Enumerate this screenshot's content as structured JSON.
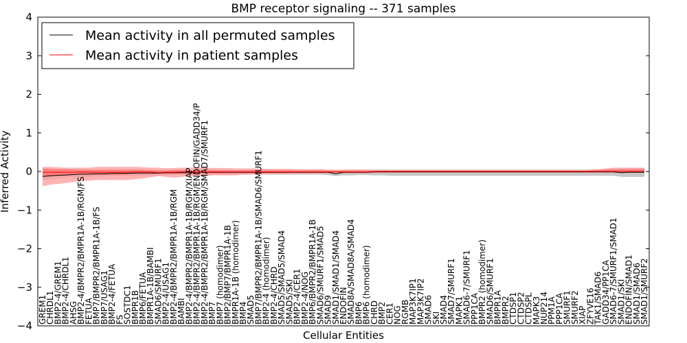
{
  "chart_data": {
    "type": "line",
    "title": "BMP receptor signaling -- 371 samples",
    "xlabel": "Cellular Entities",
    "ylabel": "Inferred Activity",
    "ylim": [
      -4,
      4
    ],
    "yticks": [
      -4,
      -3,
      -2,
      -1,
      0,
      1,
      2,
      3,
      4
    ],
    "ytick_labels": [
      "−4",
      "−3",
      "−2",
      "−1",
      "0",
      "1",
      "2",
      "3",
      "4"
    ],
    "legend_position": "top-left",
    "categories": [
      "GREM1",
      "CHRDL1",
      "BMP2-4/GREM1",
      "BMP2-4/CHRDL1",
      "AHSG",
      "BMP2-4/BMPR2/BMPR1A-1B/RGM/FS",
      "FETUA",
      "BMP7/BMPR2/BMPR1A-1B/FS",
      "BMP7/USAG1",
      "BMP2-4/FETUA",
      "FS",
      "SOSTDC1",
      "BMPR1B",
      "BMP6/FETUA",
      "BMPR1A-1B/BAMBI",
      "SMAD6/SMURF1",
      "BMP2-4/USAG1",
      "BMP2-4/BMPR2/BMPR1A-1B/RGM",
      "BAMBI",
      "BMP2-4/BMPR2/BMPR1A-1B/RGM/XIAP",
      "BMP2-4/BMPR2/BMPR1A-1B/RGM/ENDOFIN/GADD34/P",
      "BMP2-4/BMPR2/BMPR1A-1B/RGM/SMAD7/SMURF1",
      "BMP7",
      "BMP7 (homodimer)",
      "BMP2/BMP7/BMPR1A-1B",
      "BMPR1A-1B (homodimer)",
      "BMP4",
      "SMAD5",
      "BMP7/BMPR2/BMPR1A-1B/SMAD6/SMURF1",
      "BMP2-4 (homodimer)",
      "BMP2-4/CHRD",
      "SMAD5/SMAD5/SMAD4",
      "SMAD5/SKI",
      "BMP2-4/CER1",
      "BMP2-4/NOG",
      "BMP6/BMPR2/BMPR1A-1B",
      "SMAD6/SMURF1/SMAD5",
      "SMAD9",
      "SMAD1/SMAD1/SMAD4",
      "ENDOFIN",
      "SMAD8A/SMAD8A/SMAD4",
      "BMP6",
      "BMP6 (homodimer)",
      "CHRD",
      "BMP2",
      "CER1",
      "NOG",
      "RGMB",
      "MAP3K7IP1",
      "MAP3K7IP2",
      "SMAD6",
      "SKI",
      "SMAD4",
      "SMAD7/SMURF1",
      "MAPK1",
      "SMAD6-7/SMURF1",
      "PPP1CA",
      "BMPR2 (homodimer)",
      "SMAD6/SMURF1",
      "BMPR1A",
      "BMPR2",
      "CTDSP1",
      "CTDSP2",
      "CTDSPL",
      "MAPK3",
      "NUP214",
      "PPM1A",
      "PPP1CA",
      "SMURF1",
      "SMURF2",
      "XIAP",
      "ZFYVE16",
      "TAK1/SMAD6",
      "GADD34/PP1CA",
      "SMAD6-7/SMURF1/SMAD1",
      "SMAD1/SKI",
      "ENDOFIN/SMAD1",
      "SMAD1/SMAD6",
      "SMAD1/SMURF2"
    ],
    "series": [
      {
        "name": "Mean activity in all permuted samples",
        "color": "#000000",
        "values": [
          -0.13,
          -0.11,
          -0.1,
          -0.09,
          -0.08,
          -0.07,
          -0.07,
          -0.06,
          -0.06,
          -0.05,
          -0.05,
          -0.05,
          -0.04,
          -0.04,
          -0.04,
          -0.04,
          -0.03,
          -0.03,
          -0.03,
          -0.03,
          -0.02,
          -0.02,
          -0.02,
          -0.02,
          -0.02,
          -0.02,
          -0.02,
          -0.02,
          -0.02,
          -0.02,
          -0.02,
          -0.02,
          -0.02,
          -0.02,
          -0.02,
          -0.02,
          -0.02,
          -0.02,
          -0.06,
          -0.02,
          -0.02,
          -0.02,
          -0.02,
          -0.01,
          -0.01,
          -0.01,
          -0.01,
          -0.01,
          -0.01,
          -0.01,
          -0.01,
          -0.01,
          -0.01,
          -0.01,
          -0.01,
          -0.01,
          -0.01,
          -0.01,
          -0.01,
          -0.01,
          -0.01,
          -0.01,
          -0.01,
          -0.01,
          -0.01,
          -0.01,
          -0.01,
          -0.01,
          -0.01,
          -0.01,
          -0.01,
          -0.01,
          -0.01,
          -0.01,
          -0.01,
          -0.03,
          -0.02,
          -0.02,
          -0.02
        ]
      },
      {
        "name": "Mean activity in patient samples",
        "color": "#ff0000",
        "values": [
          -0.02,
          -0.02,
          -0.02,
          -0.02,
          -0.02,
          -0.01,
          -0.02,
          -0.02,
          -0.02,
          -0.02,
          -0.02,
          -0.02,
          -0.01,
          -0.01,
          -0.01,
          -0.03,
          -0.02,
          -0.02,
          -0.01,
          -0.01,
          -0.01,
          -0.01,
          -0.01,
          -0.01,
          -0.01,
          -0.01,
          -0.01,
          -0.01,
          -0.01,
          -0.01,
          -0.01,
          -0.01,
          -0.01,
          -0.01,
          -0.01,
          -0.01,
          -0.01,
          -0.01,
          -0.01,
          -0.01,
          -0.01,
          -0.01,
          -0.01,
          0.0,
          0.0,
          0.0,
          0.0,
          0.0,
          0.0,
          0.0,
          0.0,
          0.0,
          0.0,
          0.0,
          0.0,
          0.0,
          0.0,
          0.0,
          0.0,
          0.0,
          0.0,
          0.0,
          0.0,
          0.0,
          0.0,
          0.0,
          0.0,
          0.0,
          0.0,
          0.0,
          0.0,
          0.0,
          0.0,
          0.0,
          0.0,
          0.0,
          0.0,
          0.0,
          0.0
        ]
      }
    ],
    "bands": [
      {
        "name": "permuted spread",
        "color": "#b4b4b4",
        "lower": [
          -0.22,
          -0.2,
          -0.18,
          -0.16,
          -0.16,
          -0.14,
          -0.14,
          -0.13,
          -0.12,
          -0.12,
          -0.11,
          -0.11,
          -0.1,
          -0.1,
          -0.1,
          -0.1,
          -0.09,
          -0.09,
          -0.09,
          -0.09,
          -0.08,
          -0.08,
          -0.08,
          -0.08,
          -0.08,
          -0.08,
          -0.08,
          -0.08,
          -0.08,
          -0.08,
          -0.08,
          -0.08,
          -0.08,
          -0.08,
          -0.08,
          -0.08,
          -0.08,
          -0.09,
          -0.12,
          -0.1,
          -0.1,
          -0.09,
          -0.09,
          -0.1,
          -0.1,
          -0.11,
          -0.11,
          -0.11,
          -0.11,
          -0.11,
          -0.11,
          -0.11,
          -0.11,
          -0.11,
          -0.11,
          -0.11,
          -0.11,
          -0.11,
          -0.11,
          -0.11,
          -0.11,
          -0.11,
          -0.11,
          -0.11,
          -0.11,
          -0.11,
          -0.11,
          -0.11,
          -0.11,
          -0.11,
          -0.11,
          -0.11,
          -0.11,
          -0.11,
          -0.11,
          -0.14,
          -0.14,
          -0.14,
          -0.14
        ],
        "upper": [
          -0.02,
          -0.02,
          -0.02,
          -0.02,
          -0.01,
          0.0,
          0.0,
          0.01,
          0.01,
          0.02,
          0.02,
          0.02,
          0.02,
          0.02,
          0.02,
          0.02,
          0.03,
          0.03,
          0.03,
          0.03,
          0.03,
          0.03,
          0.03,
          0.03,
          0.03,
          0.03,
          0.03,
          0.03,
          0.03,
          0.03,
          0.03,
          0.03,
          0.03,
          0.03,
          0.03,
          0.03,
          0.04,
          0.03,
          0.0,
          0.05,
          0.05,
          0.05,
          0.05,
          0.05,
          0.05,
          0.05,
          0.05,
          0.05,
          0.05,
          0.05,
          0.05,
          0.05,
          0.05,
          0.05,
          0.05,
          0.05,
          0.05,
          0.05,
          0.05,
          0.05,
          0.05,
          0.05,
          0.05,
          0.05,
          0.05,
          0.05,
          0.05,
          0.05,
          0.05,
          0.05,
          0.05,
          0.05,
          0.05,
          0.05,
          0.05,
          0.08,
          0.08,
          0.08,
          0.08
        ]
      },
      {
        "name": "patient spread (outer)",
        "color": "#ff9a9a",
        "lower": [
          -0.38,
          -0.34,
          -0.32,
          -0.3,
          -0.27,
          -0.24,
          -0.24,
          -0.22,
          -0.22,
          -0.22,
          -0.22,
          -0.22,
          -0.2,
          -0.18,
          -0.15,
          -0.12,
          -0.14,
          -0.16,
          -0.14,
          -0.12,
          -0.12,
          -0.12,
          -0.1,
          -0.1,
          -0.1,
          -0.1,
          -0.08,
          -0.08,
          -0.08,
          -0.07,
          -0.07,
          -0.07,
          -0.07,
          -0.06,
          -0.06,
          -0.06,
          -0.06,
          -0.05,
          -0.05,
          -0.05,
          -0.05,
          -0.05,
          -0.05,
          -0.04,
          -0.04,
          -0.04,
          -0.03,
          -0.03,
          -0.03,
          -0.03,
          -0.03,
          -0.03,
          -0.03,
          -0.03,
          -0.03,
          -0.03,
          -0.03,
          -0.03,
          -0.03,
          -0.03,
          -0.03,
          -0.03,
          -0.03,
          -0.03,
          -0.03,
          -0.03,
          -0.03,
          -0.03,
          -0.03,
          -0.03,
          -0.03,
          -0.03,
          -0.03,
          -0.03,
          -0.03,
          -0.03,
          -0.03,
          -0.03,
          -0.03
        ],
        "upper": [
          0.12,
          0.12,
          0.11,
          0.1,
          0.1,
          0.1,
          0.1,
          0.12,
          0.12,
          0.12,
          0.12,
          0.12,
          0.12,
          0.11,
          0.1,
          0.1,
          0.08,
          0.09,
          0.1,
          0.1,
          0.1,
          0.1,
          0.09,
          0.09,
          0.09,
          0.08,
          0.08,
          0.08,
          0.08,
          0.07,
          0.07,
          0.07,
          0.07,
          0.06,
          0.06,
          0.06,
          0.06,
          0.05,
          0.05,
          0.05,
          0.05,
          0.05,
          0.05,
          0.04,
          0.04,
          0.04,
          0.04,
          0.04,
          0.04,
          0.04,
          0.04,
          0.04,
          0.04,
          0.04,
          0.04,
          0.04,
          0.04,
          0.04,
          0.04,
          0.04,
          0.04,
          0.04,
          0.04,
          0.04,
          0.04,
          0.04,
          0.04,
          0.04,
          0.04,
          0.04,
          0.04,
          0.05,
          0.06,
          0.08,
          0.1,
          0.1,
          0.1,
          0.1,
          0.1
        ]
      },
      {
        "name": "patient spread (inner)",
        "color": "#ff7070",
        "lower": [
          -0.14,
          -0.12,
          -0.1,
          -0.09,
          -0.08,
          -0.07,
          -0.08,
          -0.08,
          -0.08,
          -0.08,
          -0.08,
          -0.07,
          -0.06,
          -0.06,
          -0.06,
          -0.06,
          -0.06,
          -0.06,
          -0.05,
          -0.05,
          -0.05,
          -0.05,
          -0.05,
          -0.05,
          -0.04,
          -0.04,
          -0.04,
          -0.04,
          -0.04,
          -0.04,
          -0.03,
          -0.03,
          -0.03,
          -0.03,
          -0.03,
          -0.03,
          -0.03,
          -0.03,
          -0.03,
          -0.03,
          -0.03,
          -0.03,
          -0.03,
          -0.02,
          -0.02,
          -0.02,
          -0.02,
          -0.02,
          -0.02,
          -0.02,
          -0.02,
          -0.02,
          -0.02,
          -0.02,
          -0.02,
          -0.02,
          -0.02,
          -0.02,
          -0.02,
          -0.02,
          -0.02,
          -0.02,
          -0.02,
          -0.02,
          -0.02,
          -0.02,
          -0.02,
          -0.02,
          -0.02,
          -0.02,
          -0.02,
          -0.02,
          -0.02,
          -0.02,
          -0.02,
          -0.02,
          -0.02,
          -0.02,
          -0.02
        ],
        "upper": [
          0.08,
          0.07,
          0.06,
          0.06,
          0.05,
          0.05,
          0.05,
          0.05,
          0.05,
          0.05,
          0.05,
          0.05,
          0.05,
          0.04,
          0.04,
          0.03,
          0.03,
          0.04,
          0.04,
          0.04,
          0.04,
          0.04,
          0.04,
          0.03,
          0.03,
          0.03,
          0.03,
          0.03,
          0.03,
          0.03,
          0.03,
          0.03,
          0.03,
          0.03,
          0.03,
          0.03,
          0.03,
          0.02,
          0.02,
          0.02,
          0.02,
          0.02,
          0.02,
          0.02,
          0.02,
          0.02,
          0.02,
          0.02,
          0.02,
          0.02,
          0.02,
          0.02,
          0.02,
          0.02,
          0.02,
          0.02,
          0.02,
          0.02,
          0.02,
          0.02,
          0.02,
          0.02,
          0.02,
          0.02,
          0.02,
          0.02,
          0.02,
          0.02,
          0.02,
          0.02,
          0.02,
          0.03,
          0.04,
          0.05,
          0.06,
          0.06,
          0.06,
          0.06,
          0.06
        ]
      }
    ]
  }
}
